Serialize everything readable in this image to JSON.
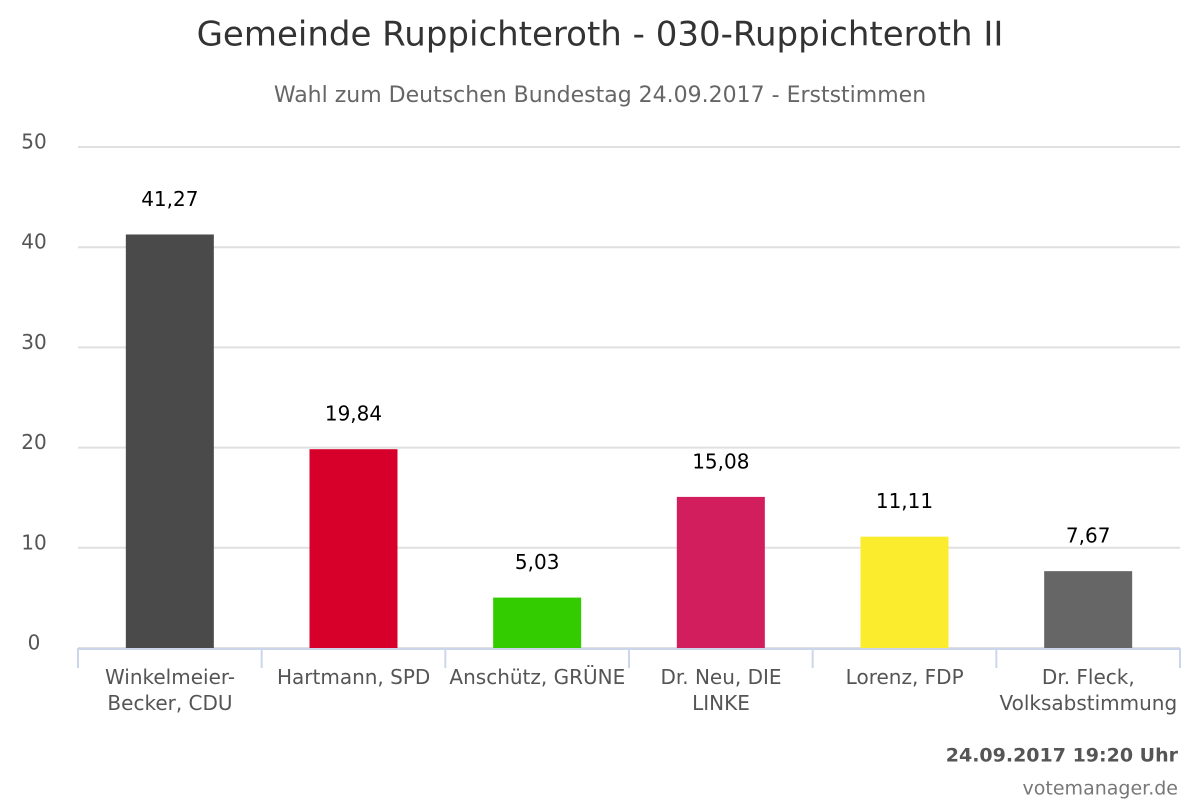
{
  "chart_data": {
    "type": "bar",
    "title": "Gemeinde Ruppichteroth - 030-Ruppichteroth II",
    "subtitle": "Wahl zum Deutschen Bundestag 24.09.2017 - Erststimmen",
    "categories": [
      "Winkelmeier-Becker, CDU",
      "Hartmann, SPD",
      "Anschütz, GRÜNE",
      "Dr. Neu, DIE LINKE",
      "Lorenz, FDP",
      "Dr. Fleck, Volksabstimmung"
    ],
    "values": [
      41.27,
      19.84,
      5.03,
      15.08,
      11.11,
      7.67
    ],
    "value_labels": [
      "41,27",
      "19,84",
      "5,03",
      "15,08",
      "11,11",
      "7,67"
    ],
    "colors": [
      "#4a4a4a",
      "#d7002a",
      "#33cc00",
      "#d21e5c",
      "#fbec2e",
      "#666666"
    ],
    "ylim": [
      0,
      50
    ],
    "yticks": [
      0,
      10,
      20,
      30,
      40,
      50
    ],
    "grid": true,
    "timestamp": "24.09.2017 19:20 Uhr",
    "source": "votemanager.de"
  }
}
